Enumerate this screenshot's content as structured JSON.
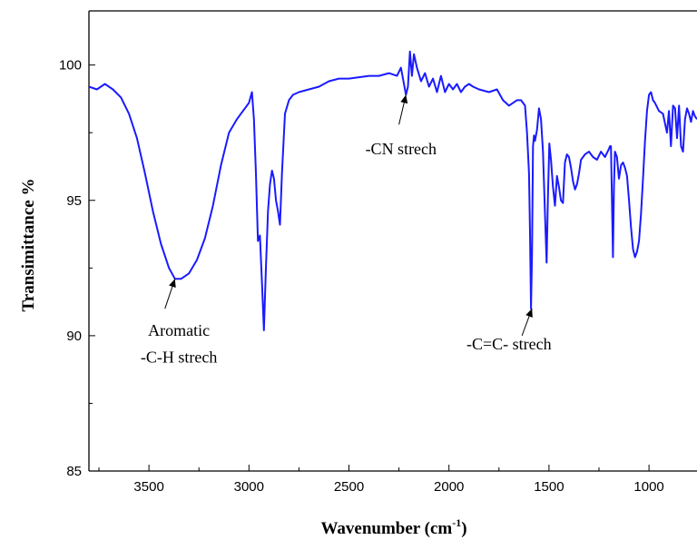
{
  "chart_data": {
    "type": "line",
    "title": "",
    "xlabel": "Wavenumber (cm",
    "xlabel_superscript": "-1",
    "xlabel_suffix": ")",
    "ylabel": "Transimittance %",
    "xlim": [
      3800,
      760
    ],
    "ylim": [
      85,
      102
    ],
    "x_reversed": true,
    "x_ticks": [
      3500,
      3000,
      2500,
      2000,
      1500,
      1000
    ],
    "y_ticks": [
      85,
      90,
      95,
      100
    ],
    "grid": false,
    "line_color": "#1a1aff",
    "series": [
      {
        "x": [
          3800,
          3760,
          3720,
          3680,
          3640,
          3600,
          3560,
          3520,
          3480,
          3440,
          3400,
          3370,
          3340,
          3300,
          3260,
          3220,
          3180,
          3140,
          3100,
          3060,
          3030,
          3000,
          2985,
          2975,
          2965,
          2955,
          2945,
          2935,
          2925,
          2915,
          2905,
          2895,
          2885,
          2875,
          2865,
          2855,
          2845,
          2835,
          2820,
          2800,
          2780,
          2750,
          2700,
          2650,
          2600,
          2550,
          2500,
          2450,
          2400,
          2350,
          2300,
          2260,
          2240,
          2225,
          2215,
          2205,
          2195,
          2185,
          2175,
          2160,
          2140,
          2120,
          2100,
          2080,
          2060,
          2040,
          2020,
          2000,
          1980,
          1960,
          1940,
          1920,
          1900,
          1880,
          1850,
          1800,
          1760,
          1730,
          1700,
          1680,
          1660,
          1640,
          1620,
          1610,
          1600,
          1595,
          1590,
          1585,
          1580,
          1575,
          1570,
          1560,
          1550,
          1540,
          1530,
          1520,
          1512,
          1505,
          1498,
          1490,
          1480,
          1470,
          1460,
          1450,
          1440,
          1430,
          1420,
          1410,
          1400,
          1390,
          1380,
          1370,
          1360,
          1350,
          1340,
          1320,
          1300,
          1280,
          1260,
          1240,
          1220,
          1200,
          1195,
          1190,
          1185,
          1180,
          1175,
          1170,
          1160,
          1150,
          1140,
          1130,
          1120,
          1110,
          1100,
          1090,
          1080,
          1070,
          1060,
          1050,
          1040,
          1030,
          1020,
          1010,
          1000,
          990,
          980,
          970,
          950,
          930,
          910,
          900,
          890,
          880,
          870,
          860,
          850,
          840,
          830,
          820,
          810,
          800,
          790,
          780,
          770,
          760
        ],
        "y": [
          99.2,
          99.1,
          99.3,
          99.1,
          98.8,
          98.2,
          97.3,
          96.0,
          94.6,
          93.4,
          92.5,
          92.1,
          92.1,
          92.3,
          92.8,
          93.6,
          94.8,
          96.3,
          97.5,
          98.0,
          98.3,
          98.6,
          99.0,
          98.0,
          96.0,
          93.5,
          93.7,
          92.0,
          90.2,
          92.5,
          94.6,
          95.6,
          96.1,
          95.8,
          95.0,
          94.6,
          94.1,
          96.0,
          98.2,
          98.7,
          98.9,
          99.0,
          99.1,
          99.2,
          99.4,
          99.5,
          99.5,
          99.55,
          99.6,
          99.6,
          99.7,
          99.6,
          99.9,
          99.3,
          98.9,
          99.2,
          100.5,
          99.6,
          100.4,
          99.9,
          99.4,
          99.7,
          99.2,
          99.5,
          99.0,
          99.6,
          99.0,
          99.3,
          99.1,
          99.3,
          99.0,
          99.2,
          99.3,
          99.2,
          99.1,
          99.0,
          99.1,
          98.7,
          98.5,
          98.6,
          98.7,
          98.7,
          98.5,
          97.5,
          96.0,
          93.8,
          91.0,
          93.0,
          97.0,
          97.4,
          97.2,
          97.6,
          98.4,
          98.0,
          96.8,
          94.5,
          92.7,
          95.2,
          97.1,
          96.5,
          95.5,
          94.8,
          95.9,
          95.5,
          95.0,
          94.9,
          96.4,
          96.7,
          96.6,
          96.2,
          95.7,
          95.4,
          95.6,
          96.0,
          96.5,
          96.7,
          96.8,
          96.6,
          96.5,
          96.8,
          96.6,
          96.9,
          97.0,
          97.0,
          95.0,
          92.9,
          95.5,
          96.8,
          96.6,
          95.8,
          96.3,
          96.4,
          96.2,
          95.9,
          95.0,
          94.0,
          93.2,
          92.9,
          93.1,
          93.5,
          94.5,
          95.8,
          97.2,
          98.3,
          98.9,
          99.0,
          98.7,
          98.6,
          98.3,
          98.2,
          97.5,
          98.3,
          97.0,
          98.5,
          98.4,
          97.3,
          98.5,
          97.0,
          96.8,
          98.0,
          98.4,
          98.2,
          97.9,
          98.3,
          98.1,
          98.0
        ]
      }
    ],
    "annotations": [
      {
        "text": "Aromatic",
        "x": 3350,
        "y": 90.0,
        "arrow_to_x": 3370,
        "arrow_to_y": 92.1,
        "arrow_from_x": 3420,
        "arrow_from_y": 91.0
      },
      {
        "text": "-C-H strech",
        "x": 3350,
        "y": 89.0
      },
      {
        "text": "-CN strech",
        "x": 2240,
        "y": 96.7,
        "arrow_to_x": 2215,
        "arrow_to_y": 98.9,
        "arrow_from_x": 2250,
        "arrow_from_y": 97.8
      },
      {
        "text": "-C=C- strech",
        "x": 1700,
        "y": 89.5,
        "arrow_to_x": 1585,
        "arrow_to_y": 91.0,
        "arrow_from_x": 1635,
        "arrow_from_y": 90.0
      }
    ]
  }
}
